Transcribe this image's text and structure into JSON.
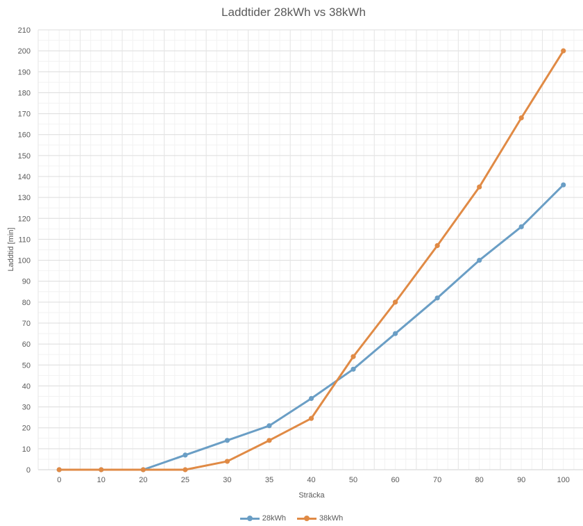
{
  "chart_data": {
    "type": "line",
    "title": "Laddtider 28kWh vs 38kWh",
    "xlabel": "Sträcka",
    "ylabel": "Laddtid [min]",
    "categories": [
      "0",
      "10",
      "20",
      "25",
      "30",
      "35",
      "40",
      "50",
      "60",
      "70",
      "80",
      "90",
      "100"
    ],
    "ylim": [
      0,
      210
    ],
    "ytick_step": 10,
    "grid": true,
    "legend_position": "bottom",
    "series": [
      {
        "name": "28kWh",
        "color": "#6a9ec5",
        "values": [
          0,
          0,
          0,
          7,
          14,
          21,
          34,
          48,
          65,
          82,
          100,
          116,
          136
        ]
      },
      {
        "name": "38kWh",
        "color": "#e08a45",
        "values": [
          0,
          0,
          0,
          0,
          4,
          14,
          24.5,
          54,
          80,
          107,
          135,
          168,
          200
        ]
      }
    ]
  }
}
